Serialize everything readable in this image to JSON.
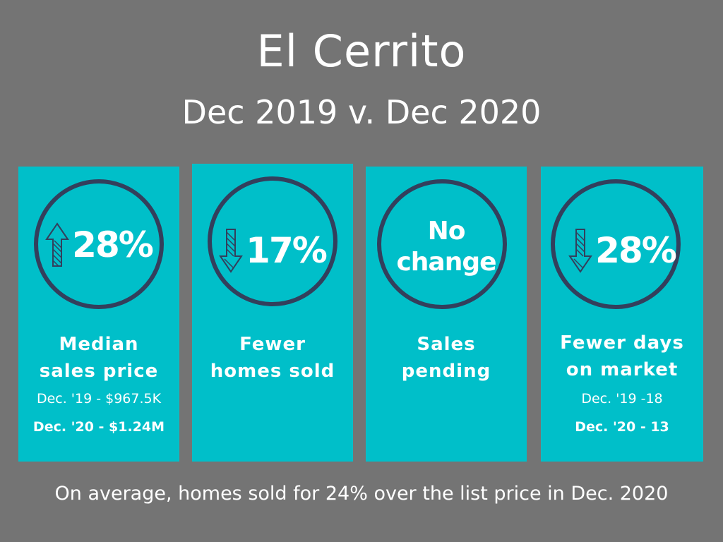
{
  "header": {
    "title": "El Cerrito",
    "subtitle": "Dec 2019 v. Dec 2020"
  },
  "colors": {
    "background": "#747474",
    "card": "#00bfc9",
    "circle": "#333f5c",
    "text": "#ffffff"
  },
  "cards": [
    {
      "direction": "up",
      "arrow_icon": "up-arrow-icon",
      "value": "28%",
      "label_line1": "Median",
      "label_line2": "sales price",
      "detail1": "Dec. '19 - $967.5K",
      "detail2": "Dec. '20 - $1.24M"
    },
    {
      "direction": "down",
      "arrow_icon": "down-arrow-icon",
      "value": "17%",
      "label_line1": "Fewer",
      "label_line2": "homes sold"
    },
    {
      "value_line1": "No",
      "value_line2": "change",
      "label_line1": "Sales",
      "label_line2": "pending"
    },
    {
      "direction": "down",
      "arrow_icon": "down-arrow-icon",
      "value": "28%",
      "label_line1": "Fewer days",
      "label_line2": "on market",
      "detail1": "Dec. '19 -18",
      "detail2": "Dec. '20 - 13"
    }
  ],
  "footer": {
    "text": "On average, homes sold for 24% over the list price in Dec. 2020"
  }
}
